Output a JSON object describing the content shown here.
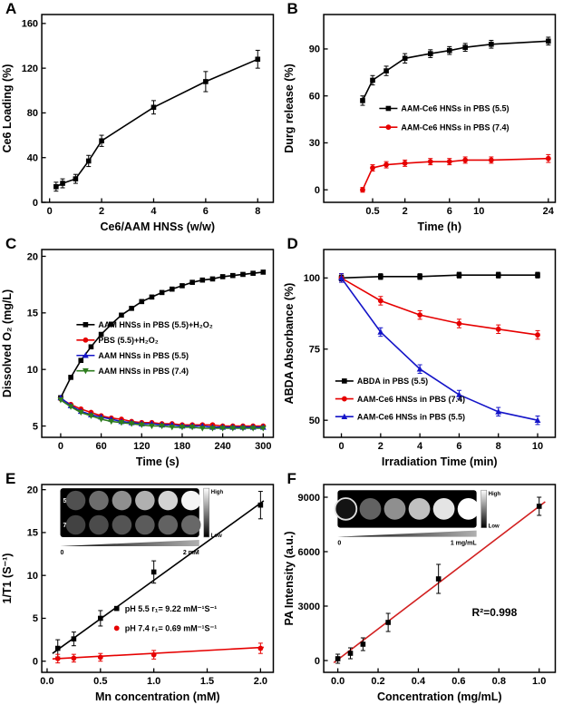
{
  "chart_data": [
    {
      "label": "A",
      "type": "line",
      "xlabel": "Ce6/AAM HNSs (w/w)",
      "ylabel": "Ce6 Loading (%)",
      "xlim": [
        -0.3,
        8.6
      ],
      "ylim": [
        0,
        168
      ],
      "xticks": [
        0,
        2,
        4,
        6,
        8
      ],
      "yticks": [
        0,
        40,
        80,
        120,
        160
      ],
      "series": [
        {
          "name": "",
          "color": "#000000",
          "marker": "square",
          "line": true,
          "x": [
            0.25,
            0.5,
            1,
            1.5,
            2,
            4,
            6,
            8
          ],
          "y": [
            14,
            17,
            21,
            37,
            55,
            85,
            108,
            128
          ],
          "yerr": [
            4,
            4,
            4,
            5,
            5,
            6,
            9,
            8
          ]
        }
      ]
    },
    {
      "label": "B",
      "type": "line",
      "xlabel": "Time (h)",
      "ylabel": "Durg release (%)",
      "xscale": {
        "type": "power",
        "exp": 0.45,
        "max": 24,
        "pad": [
          0.05,
          0.03
        ]
      },
      "ylim": [
        -8,
        112
      ],
      "xticks": [
        0.5,
        2,
        6,
        10,
        24
      ],
      "xtick_labels": [
        "0.5",
        "2",
        "6",
        "10",
        "24"
      ],
      "yticks": [
        0,
        30,
        60,
        90
      ],
      "legend": {
        "x": 0.24,
        "y": 0.5,
        "dy": 0.1
      },
      "series": [
        {
          "name": "AAM-Ce6 HNSs in PBS (5.5)",
          "color": "#000000",
          "marker": "square",
          "line": true,
          "x": [
            0.25,
            0.5,
            1,
            2,
            4,
            6,
            8,
            12,
            24
          ],
          "y": [
            57,
            70,
            76,
            84,
            87,
            89,
            91,
            93,
            95
          ],
          "yerr": [
            3,
            3,
            3,
            3,
            2.5,
            2.5,
            2.5,
            2.5,
            2.5
          ]
        },
        {
          "name": "AAM-Ce6 HNSs in PBS (7.4)",
          "color": "#e60000",
          "marker": "circle",
          "line": true,
          "x": [
            0.25,
            0.5,
            1,
            2,
            4,
            6,
            8,
            12,
            24
          ],
          "y": [
            0,
            14,
            16,
            17,
            18,
            18,
            19,
            19,
            20
          ],
          "yerr": [
            1.5,
            2,
            2,
            2,
            2,
            2,
            2,
            2,
            2.5
          ]
        }
      ]
    },
    {
      "label": "C",
      "type": "line",
      "xlabel": "Time (s)",
      "ylabel": "Dissolved O₂ (mg/L)",
      "xlim": [
        -28,
        315
      ],
      "ylim": [
        4,
        20.6
      ],
      "xticks": [
        0,
        60,
        120,
        180,
        240,
        300
      ],
      "yticks": [
        5,
        10,
        15,
        20
      ],
      "legend": {
        "x": 0.15,
        "y": 0.4,
        "dy": 0.082
      },
      "series": [
        {
          "name": "AAM HNSs in PBS (5.5)+H₂O₂",
          "color": "#000000",
          "marker": "square",
          "line": true,
          "x": [
            0,
            15,
            30,
            45,
            60,
            75,
            90,
            105,
            120,
            135,
            150,
            165,
            180,
            195,
            210,
            225,
            240,
            255,
            270,
            285,
            300
          ],
          "y": [
            7.5,
            9.3,
            10.8,
            12.0,
            13.1,
            14.0,
            14.8,
            15.4,
            16.0,
            16.4,
            16.8,
            17.1,
            17.4,
            17.7,
            17.9,
            18.0,
            18.2,
            18.3,
            18.4,
            18.5,
            18.6
          ]
        },
        {
          "name": "PBS (5.5)+H₂O₂",
          "color": "#e60000",
          "marker": "circle",
          "line": true,
          "x": [
            0,
            15,
            30,
            45,
            60,
            75,
            90,
            105,
            120,
            135,
            150,
            165,
            180,
            195,
            210,
            225,
            240,
            255,
            270,
            285,
            300
          ],
          "y": [
            7.4,
            6.9,
            6.5,
            6.2,
            5.9,
            5.7,
            5.6,
            5.4,
            5.3,
            5.3,
            5.2,
            5.2,
            5.1,
            5.1,
            5.1,
            5.1,
            5.0,
            5.0,
            5.0,
            5.0,
            5.0
          ]
        },
        {
          "name": "AAM HNSs in PBS (5.5)",
          "color": "#1414c8",
          "marker": "triangle-up",
          "line": true,
          "x": [
            0,
            15,
            30,
            45,
            60,
            75,
            90,
            105,
            120,
            135,
            150,
            165,
            180,
            195,
            210,
            225,
            240,
            255,
            270,
            285,
            300
          ],
          "y": [
            7.5,
            6.8,
            6.3,
            6.0,
            5.8,
            5.6,
            5.4,
            5.3,
            5.2,
            5.2,
            5.1,
            5.1,
            5.0,
            5.0,
            5.0,
            4.9,
            4.9,
            4.9,
            4.9,
            4.9,
            4.9
          ]
        },
        {
          "name": "AAM HNSs in PBS (7.4)",
          "color": "#2e7d1e",
          "marker": "triangle-down",
          "line": true,
          "x": [
            0,
            15,
            30,
            45,
            60,
            75,
            90,
            105,
            120,
            135,
            150,
            165,
            180,
            195,
            210,
            225,
            240,
            255,
            270,
            285,
            300
          ],
          "y": [
            7.3,
            6.7,
            6.2,
            5.9,
            5.6,
            5.4,
            5.3,
            5.2,
            5.1,
            5.0,
            5.0,
            4.9,
            4.9,
            4.9,
            4.8,
            4.8,
            4.8,
            4.8,
            4.8,
            4.8,
            4.8
          ]
        }
      ]
    },
    {
      "label": "D",
      "type": "line",
      "xlabel": "Irradiation Time (min)",
      "ylabel": "ABDA Absorbance (%)",
      "xlim": [
        -0.9,
        10.9
      ],
      "ylim": [
        44,
        110
      ],
      "xticks": [
        0,
        2,
        4,
        6,
        8,
        10
      ],
      "yticks": [
        50,
        75,
        100
      ],
      "legend": {
        "x": 0.05,
        "y": 0.7,
        "dy": 0.095
      },
      "series": [
        {
          "name": "ABDA in PBS (5.5)",
          "color": "#000000",
          "marker": "square",
          "line": true,
          "x": [
            0,
            2,
            4,
            6,
            8,
            10
          ],
          "y": [
            100,
            100.5,
            100.5,
            101,
            101,
            101
          ],
          "yerr": [
            1,
            1,
            1,
            1,
            1,
            1
          ]
        },
        {
          "name": "AAM-Ce6 HNSs in PBS (7.4)",
          "color": "#e60000",
          "marker": "circle",
          "line": true,
          "x": [
            0,
            2,
            4,
            6,
            8,
            10
          ],
          "y": [
            100,
            92,
            87,
            84,
            82,
            80
          ],
          "yerr": [
            1.5,
            1.5,
            1.5,
            1.5,
            1.5,
            1.5
          ]
        },
        {
          "name": "AAM-Ce6 HNSs in PBS (5.5)",
          "color": "#1414c8",
          "marker": "triangle-up",
          "line": true,
          "x": [
            0,
            2,
            4,
            6,
            8,
            10
          ],
          "y": [
            100,
            81,
            68,
            59,
            53,
            50
          ],
          "yerr": [
            1.5,
            1.5,
            1.5,
            1.5,
            1.5,
            1.5
          ]
        }
      ]
    },
    {
      "label": "E",
      "type": "scatter",
      "xlabel": "Mn concentration (mM)",
      "ylabel": "1/T1 (S⁻¹)",
      "xlim": [
        -0.05,
        2.12
      ],
      "ylim": [
        -1.3,
        20.6
      ],
      "xticks": [
        0,
        0.5,
        1,
        1.5,
        2
      ],
      "xtick_labels": [
        "0.0",
        "0.5",
        "1.0",
        "1.5",
        "2.0"
      ],
      "yticks": [
        0,
        5,
        10,
        15,
        20
      ],
      "legend": {
        "x": 0.3,
        "y": 0.66,
        "dy": 0.105
      },
      "series": [
        {
          "name": "",
          "color": "#000000",
          "line": true,
          "x": [
            0.05,
            2.03
          ],
          "y": [
            0.9,
            18.7
          ]
        },
        {
          "name": "",
          "color": "#e60000",
          "line": true,
          "x": [
            0.05,
            2.03
          ],
          "y": [
            0.27,
            1.62
          ]
        },
        {
          "name": "pH 5.5  r₁= 9.22 mM⁻¹S⁻¹",
          "color": "#000000",
          "marker": "square",
          "line": false,
          "x": [
            0.1,
            0.25,
            0.5,
            1.0,
            2.0
          ],
          "y": [
            1.5,
            2.6,
            5.0,
            10.4,
            18.2
          ],
          "yerr": [
            1.0,
            0.8,
            0.9,
            1.3,
            1.6
          ]
        },
        {
          "name": "pH 7.4  r₁= 0.69 mM⁻¹S⁻¹",
          "color": "#e60000",
          "marker": "circle",
          "line": false,
          "x": [
            0.1,
            0.25,
            0.5,
            1.0,
            2.0
          ],
          "y": [
            0.3,
            0.35,
            0.45,
            0.75,
            1.5
          ],
          "yerr": [
            0.5,
            0.45,
            0.45,
            0.5,
            0.6
          ]
        }
      ],
      "inset": {
        "type": "wells",
        "pos": [
          0.08,
          0.02,
          0.6,
          0.26
        ],
        "rows": [
          {
            "label": "5.5",
            "wells": [
              0.22,
              0.35,
              0.5,
              0.65,
              0.8,
              0.95
            ]
          },
          {
            "label": "7.4",
            "wells": [
              0.16,
              0.2,
              0.24,
              0.27,
              0.3,
              0.33
            ]
          }
        ],
        "ramp": {
          "left": "0",
          "right": "2 mM"
        },
        "colorbar": {
          "high": "High",
          "low": "Low"
        }
      }
    },
    {
      "label": "F",
      "type": "scatter",
      "xlabel": "Concentration (mg/mL)",
      "ylabel": "PA Intensity (a.u.)",
      "xlim": [
        -0.07,
        1.08
      ],
      "ylim": [
        -650,
        9700
      ],
      "xticks": [
        0,
        0.2,
        0.4,
        0.6,
        0.8,
        1
      ],
      "xtick_labels": [
        "0.0",
        "0.2",
        "0.4",
        "0.6",
        "0.8",
        "1.0"
      ],
      "yticks": [
        0,
        3000,
        6000,
        9000
      ],
      "annotation": {
        "text": "R²=0.998",
        "x": 0.64,
        "y": 0.7,
        "size": 12
      },
      "series": [
        {
          "name": "",
          "color": "#d22020",
          "line": true,
          "x": [
            -0.02,
            1.03
          ],
          "y": [
            -120,
            8750
          ]
        },
        {
          "name": "",
          "color": "#000000",
          "marker": "square",
          "line": false,
          "x": [
            0,
            0.0625,
            0.125,
            0.25,
            0.5,
            1.0
          ],
          "y": [
            100,
            400,
            900,
            2100,
            4500,
            8500
          ],
          "yerr": [
            250,
            300,
            350,
            500,
            800,
            500
          ]
        }
      ],
      "inset": {
        "type": "wells",
        "pos": [
          0.06,
          0.03,
          0.6,
          0.2
        ],
        "rows": [
          {
            "label": "",
            "wells": [
              -1,
              0.3,
              0.5,
              0.72,
              0.88,
              1.0
            ]
          }
        ],
        "ramp": {
          "left": "0",
          "right": "1 mg/mL"
        },
        "colorbar": {
          "high": "High",
          "low": "Low"
        }
      }
    }
  ]
}
